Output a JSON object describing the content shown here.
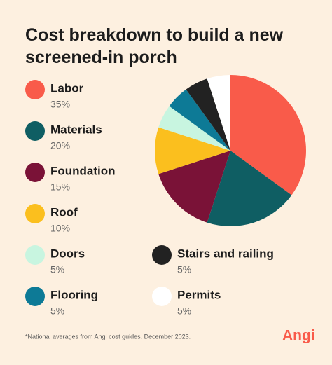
{
  "chart_data": {
    "type": "pie",
    "title": "Cost breakdown to build a new screened-in porch",
    "categories": [
      "Labor",
      "Materials",
      "Foundation",
      "Roof",
      "Doors",
      "Flooring",
      "Stairs and railing",
      "Permits"
    ],
    "values": [
      35,
      20,
      15,
      10,
      5,
      5,
      5,
      5
    ],
    "value_labels": [
      "35%",
      "20%",
      "15%",
      "10%",
      "5%",
      "5%",
      "5%",
      "5%"
    ],
    "colors": [
      "#f95b4a",
      "#0f5e63",
      "#7a1237",
      "#fbbf1e",
      "#c8f5e0",
      "#0d7a96",
      "#222222",
      "#ffffff"
    ],
    "note": "*National averages from Angi cost guides. December 2023.",
    "logo": "Angi"
  }
}
